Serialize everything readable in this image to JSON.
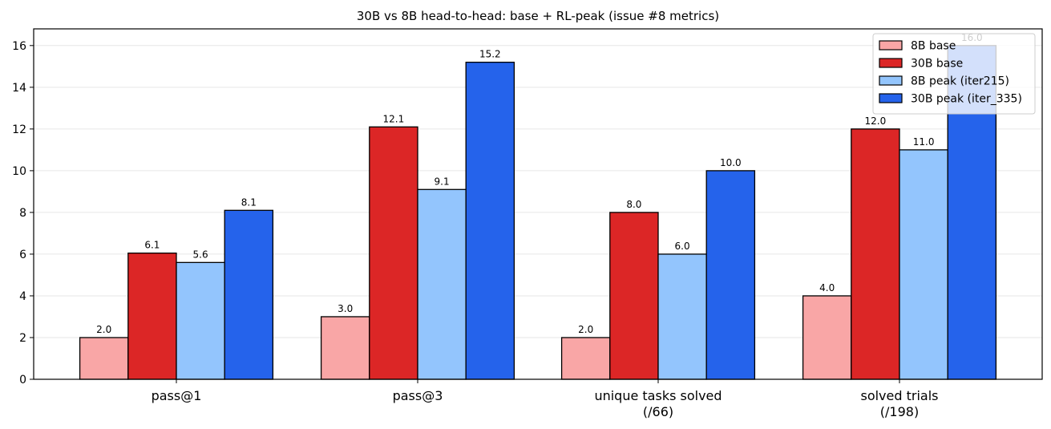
{
  "chart_data": {
    "type": "bar",
    "title": "30B vs 8B head-to-head: base + RL-peak (issue #8 metrics)",
    "xlabel": "",
    "ylabel": "",
    "categories": [
      [
        "pass@1"
      ],
      [
        "pass@3"
      ],
      [
        "unique tasks solved",
        "(/66)"
      ],
      [
        "solved trials",
        "(/198)"
      ]
    ],
    "series": [
      {
        "name": "8B base",
        "color": "#f9a6a6",
        "values": [
          2.0,
          3.0,
          2.0,
          4.0
        ],
        "labels": [
          "2.0",
          "3.0",
          "2.0",
          "4.0"
        ]
      },
      {
        "name": "30B base",
        "color": "#dc2626",
        "values": [
          6.05,
          12.1,
          8.0,
          12.0
        ],
        "labels": [
          "6.1",
          "12.1",
          "8.0",
          "12.0"
        ]
      },
      {
        "name": "8B peak (iter215)",
        "color": "#93c5fd",
        "values": [
          5.6,
          9.1,
          6.0,
          11.0
        ],
        "labels": [
          "5.6",
          "9.1",
          "6.0",
          "11.0"
        ]
      },
      {
        "name": "30B peak (iter_335)",
        "color": "#2563eb",
        "values": [
          8.1,
          15.2,
          10.0,
          16.0
        ],
        "labels": [
          "8.1",
          "15.2",
          "10.0",
          "16.0"
        ]
      }
    ],
    "ylim": [
      0,
      16.8
    ],
    "yticks": [
      0,
      2,
      4,
      6,
      8,
      10,
      12,
      14,
      16
    ],
    "grid": "horizontal",
    "legend_position": "top-right"
  }
}
